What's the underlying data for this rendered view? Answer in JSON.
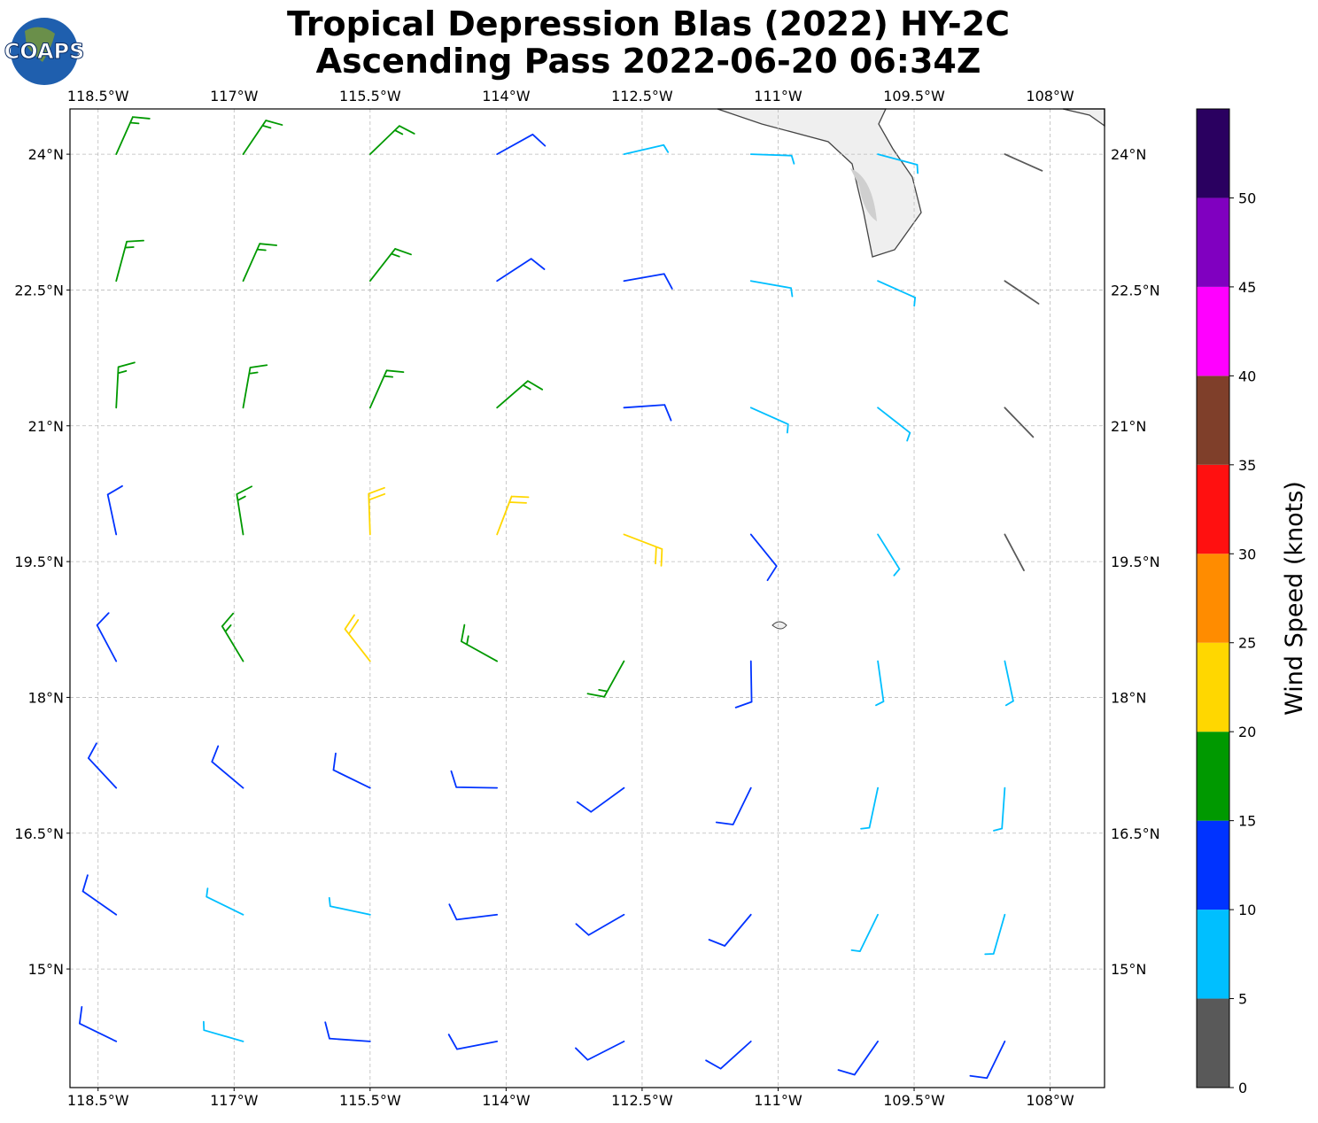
{
  "chart_data": {
    "type": "barb",
    "title": "Tropical Depression Blas (2022) HY-2C",
    "subtitle": "Ascending Pass 2022-06-20 06:34Z",
    "logo_text": "COAPS",
    "xlim": [
      -118.81,
      -107.4
    ],
    "ylim": [
      13.69,
      24.5
    ],
    "xticks": [
      {
        "value": -118.5,
        "label": "118.5°W"
      },
      {
        "value": -117,
        "label": "117°W"
      },
      {
        "value": -115.5,
        "label": "115.5°W"
      },
      {
        "value": -114,
        "label": "114°W"
      },
      {
        "value": -112.5,
        "label": "112.5°W"
      },
      {
        "value": -111,
        "label": "111°W"
      },
      {
        "value": -109.5,
        "label": "109.5°W"
      },
      {
        "value": -108,
        "label": "108°W"
      }
    ],
    "yticks": [
      {
        "value": 24,
        "label": "24°N"
      },
      {
        "value": 22.5,
        "label": "22.5°N"
      },
      {
        "value": 21,
        "label": "21°N"
      },
      {
        "value": 19.5,
        "label": "19.5°N"
      },
      {
        "value": 18,
        "label": "18°N"
      },
      {
        "value": 16.5,
        "label": "16.5°N"
      },
      {
        "value": 15,
        "label": "15°N"
      }
    ],
    "grid": true,
    "lon": [
      -118.3,
      -116.9,
      -115.5,
      -114.1,
      -112.7,
      -111.3,
      -109.9,
      -108.5,
      -118.3,
      -116.9,
      -115.5,
      -114.1,
      -112.7,
      -111.3,
      -109.9,
      -108.5,
      -118.3,
      -116.9,
      -115.5,
      -114.1,
      -112.7,
      -111.3,
      -109.9,
      -108.5,
      -118.3,
      -116.9,
      -115.5,
      -114.1,
      -112.7,
      -111.3,
      -109.9,
      -108.5,
      -118.3,
      -116.9,
      -115.5,
      -114.1,
      -112.7,
      -111.3,
      -109.9,
      -108.5,
      -118.3,
      -116.9,
      -115.5,
      -114.1,
      -112.7,
      -111.3,
      -109.9,
      -108.5,
      -118.3,
      -116.9,
      -115.5,
      -114.1,
      -112.7,
      -111.3,
      -109.9,
      -108.5,
      -118.3,
      -116.9,
      -115.5,
      -114.1,
      -112.7,
      -111.3,
      -109.9,
      -108.5
    ],
    "lat": [
      24,
      24,
      24,
      24,
      24,
      24,
      24,
      24,
      22.6,
      22.6,
      22.6,
      22.6,
      22.6,
      22.6,
      22.6,
      22.6,
      21.2,
      21.2,
      21.2,
      21.2,
      21.2,
      21.2,
      21.2,
      21.2,
      19.8,
      19.8,
      19.8,
      19.8,
      19.8,
      19.8,
      19.8,
      19.8,
      18.4,
      18.4,
      18.4,
      18.4,
      18.4,
      18.4,
      18.4,
      18.4,
      17,
      17,
      17,
      17,
      17,
      17,
      17,
      17,
      15.6,
      15.6,
      15.6,
      15.6,
      15.6,
      15.6,
      15.6,
      15.6,
      14.2,
      14.2,
      14.2,
      14.2,
      14.2,
      14.2,
      14.2,
      14.2
    ],
    "speed": [
      17,
      17,
      16,
      13,
      8,
      7,
      6,
      3,
      17,
      17,
      17,
      14,
      11,
      8,
      6,
      3,
      16,
      17,
      17,
      16,
      14,
      9,
      7,
      4,
      13,
      17,
      22,
      22,
      20,
      13,
      8,
      3,
      13,
      16,
      21,
      17,
      16,
      13,
      8,
      6,
      12,
      13,
      13,
      14,
      14,
      12,
      8,
      7,
      12,
      9,
      9,
      13,
      13,
      13,
      8,
      8,
      11,
      8,
      12,
      12,
      12,
      11,
      10,
      11
    ],
    "direction": [
      24,
      34,
      46,
      61,
      77,
      92,
      105,
      114,
      15,
      24,
      38,
      57,
      80,
      100,
      114,
      124,
      3,
      10,
      24,
      49,
      86,
      114,
      128,
      136,
      348,
      351,
      358,
      21,
      111,
      141,
      148,
      152,
      332,
      329,
      322,
      299,
      209,
      179,
      172,
      168,
      317,
      310,
      296,
      271,
      234,
      206,
      192,
      184,
      305,
      296,
      282,
      263,
      240,
      220,
      206,
      196,
      296,
      286,
      274,
      259,
      243,
      228,
      215,
      206
    ],
    "colorbar": {
      "label": "Wind Speed (knots)",
      "clim": [
        0,
        55
      ],
      "bounds": [
        0,
        5,
        10,
        15,
        20,
        25,
        30,
        35,
        40,
        45,
        50,
        55
      ],
      "colors": [
        "#595959",
        "#00bfff",
        "#0033ff",
        "#009900",
        "#ffd700",
        "#ff8c00",
        "#ff1010",
        "#7f3f2a",
        "#ff00ff",
        "#8000c0",
        "#2a0060"
      ],
      "ticks": [
        0,
        5,
        10,
        15,
        20,
        25,
        30,
        35,
        40,
        45,
        50
      ]
    }
  }
}
